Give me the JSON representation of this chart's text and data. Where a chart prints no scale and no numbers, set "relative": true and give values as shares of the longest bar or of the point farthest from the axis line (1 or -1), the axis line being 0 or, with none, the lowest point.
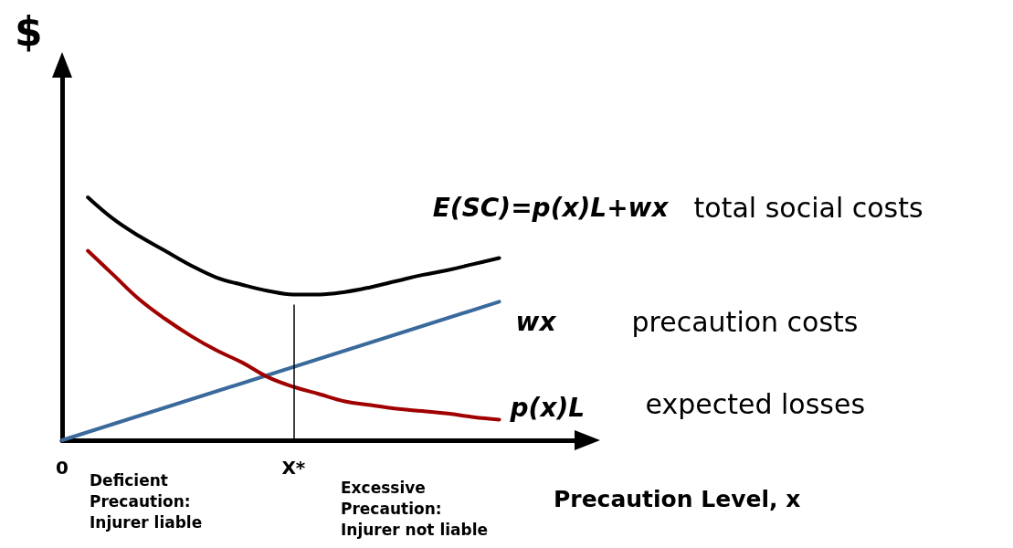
{
  "chart_data": {
    "type": "line",
    "relative": true,
    "ylabel": "$",
    "xlabel": "Precaution Level, x",
    "legend": false,
    "grid": false,
    "marker": "none",
    "line_style": "solid",
    "categories": [
      "0",
      null,
      null,
      null,
      null,
      null,
      null,
      null,
      null,
      "X*",
      null,
      null,
      null,
      null,
      null,
      null,
      null,
      null,
      null,
      null,
      null
    ],
    "series": [
      {
        "name": "E(SC)=p(x)L+wx",
        "color": "#000000",
        "values": [
          null,
          1,
          0.91,
          0.84,
          0.78,
          0.72,
          0.67,
          0.64,
          0.615,
          0.6,
          0.6,
          0.61,
          0.63,
          0.655,
          0.68,
          0.7,
          0.725,
          0.75,
          null,
          null,
          null
        ]
      },
      {
        "name": "wx",
        "color": "#3a6a9c",
        "values": [
          0,
          null,
          null,
          null,
          null,
          null,
          null,
          null,
          null,
          null,
          null,
          null,
          null,
          null,
          null,
          null,
          null,
          0.57,
          null,
          null,
          null
        ]
      },
      {
        "name": "p(x)L",
        "color": "#a00000",
        "values": [
          null,
          0.78,
          0.68,
          0.58,
          0.5,
          0.43,
          0.37,
          0.32,
          0.26,
          0.22,
          0.19,
          0.16,
          0.145,
          0.13,
          0.12,
          0.11,
          0.095,
          0.085,
          null,
          null,
          null
        ]
      }
    ],
    "ref_lines": [
      {
        "axis": "x",
        "value": "X*",
        "color": "#000000"
      }
    ],
    "annotations": [
      "total social costs",
      "precaution costs",
      "expected losses",
      "Deficient\nPrecaution:\nInjurer liable",
      "Excessive\nPrecaution:\nInjurer not liable"
    ]
  }
}
